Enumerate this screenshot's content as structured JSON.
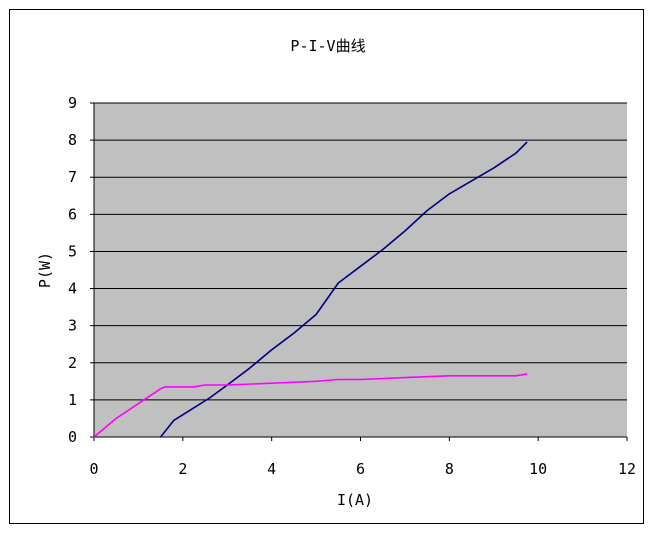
{
  "chart_data": {
    "type": "line",
    "title": "P-I-V曲线",
    "xlabel": "I(A)",
    "ylabel": "P(W)",
    "xlim": [
      0,
      12
    ],
    "ylim": [
      0,
      9
    ],
    "x_ticks": [
      0,
      2,
      4,
      6,
      8,
      10,
      12
    ],
    "y_ticks": [
      0,
      1,
      2,
      3,
      4,
      5,
      6,
      7,
      8,
      9
    ],
    "grid": "horizontal",
    "plot_background": "#c0c0c0",
    "legend": "none",
    "series": [
      {
        "color": "#000080",
        "points": [
          [
            1.5,
            0
          ],
          [
            1.8,
            0.45
          ],
          [
            2.2,
            0.75
          ],
          [
            2.6,
            1.05
          ],
          [
            3.0,
            1.4
          ],
          [
            3.5,
            1.85
          ],
          [
            4.0,
            2.35
          ],
          [
            4.5,
            2.8
          ],
          [
            5.0,
            3.3
          ],
          [
            5.5,
            4.15
          ],
          [
            6.0,
            4.6
          ],
          [
            6.5,
            5.05
          ],
          [
            7.0,
            5.55
          ],
          [
            7.5,
            6.1
          ],
          [
            8.0,
            6.55
          ],
          [
            8.5,
            6.9
          ],
          [
            9.0,
            7.25
          ],
          [
            9.5,
            7.65
          ],
          [
            9.75,
            7.95
          ]
        ]
      },
      {
        "color": "#ff00ff",
        "points": [
          [
            0,
            0
          ],
          [
            0.5,
            0.5
          ],
          [
            1.0,
            0.9
          ],
          [
            1.5,
            1.3
          ],
          [
            1.6,
            1.35
          ],
          [
            2.0,
            1.35
          ],
          [
            2.25,
            1.35
          ],
          [
            2.5,
            1.4
          ],
          [
            3.0,
            1.4
          ],
          [
            4.0,
            1.45
          ],
          [
            5.0,
            1.5
          ],
          [
            5.5,
            1.55
          ],
          [
            6.0,
            1.55
          ],
          [
            7.0,
            1.6
          ],
          [
            8.0,
            1.65
          ],
          [
            9.0,
            1.65
          ],
          [
            9.5,
            1.65
          ],
          [
            9.75,
            1.7
          ]
        ]
      }
    ]
  }
}
